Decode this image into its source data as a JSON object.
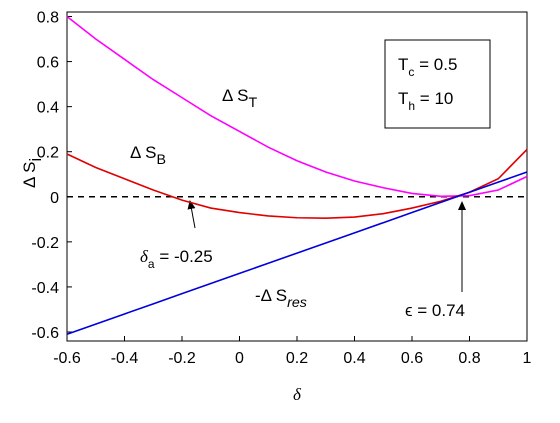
{
  "chart_data": {
    "type": "line",
    "x": [
      -0.6,
      -0.5,
      -0.4,
      -0.3,
      -0.2,
      -0.1,
      0,
      0.1,
      0.2,
      0.3,
      0.4,
      0.5,
      0.6,
      0.7,
      0.8,
      0.9,
      1
    ],
    "series": [
      {
        "name": "Δ S_T",
        "color": "#ff00ff",
        "values": [
          0.8,
          0.7,
          0.61,
          0.52,
          0.44,
          0.36,
          0.29,
          0.22,
          0.16,
          0.11,
          0.07,
          0.04,
          0.015,
          0.002,
          0.005,
          0.03,
          0.09
        ]
      },
      {
        "name": "Δ S_B",
        "color": "#e00000",
        "values": [
          0.19,
          0.13,
          0.08,
          0.03,
          -0.015,
          -0.05,
          -0.07,
          -0.085,
          -0.093,
          -0.095,
          -0.09,
          -0.075,
          -0.05,
          -0.02,
          0.02,
          0.08,
          0.21
        ]
      },
      {
        "name": "-Δ S_res",
        "color": "#0000dd",
        "values": [
          -0.61,
          -0.565,
          -0.52,
          -0.475,
          -0.43,
          -0.385,
          -0.34,
          -0.295,
          -0.25,
          -0.205,
          -0.16,
          -0.115,
          -0.07,
          -0.025,
          0.02,
          0.065,
          0.11
        ]
      }
    ],
    "xlim": [
      -0.6,
      1
    ],
    "ylim": [
      -0.64,
      0.82
    ],
    "xticks": [
      -0.6,
      -0.4,
      -0.2,
      0,
      0.2,
      0.4,
      0.6,
      0.8,
      1
    ],
    "yticks": [
      -0.6,
      -0.4,
      -0.2,
      0,
      0.2,
      0.4,
      0.6,
      0.8
    ],
    "hline": 0,
    "xlabel": "δ",
    "ylabel": {
      "main": "Δ S",
      "sub": "i"
    },
    "curve_labels": [
      {
        "main": "Δ S",
        "sub": "T"
      },
      {
        "main": "Δ S",
        "sub": "B"
      },
      {
        "main": "-Δ S",
        "sub": "res"
      }
    ],
    "annotations": [
      {
        "main": "δ",
        "sub": "a",
        "rest": " = -0.25"
      },
      {
        "main": "ϵ = 0.74"
      }
    ],
    "box": [
      {
        "main": "T",
        "sub": "c",
        "rest": " = 0.5"
      },
      {
        "main": "T",
        "sub": "h",
        "rest": " = 10"
      }
    ]
  }
}
